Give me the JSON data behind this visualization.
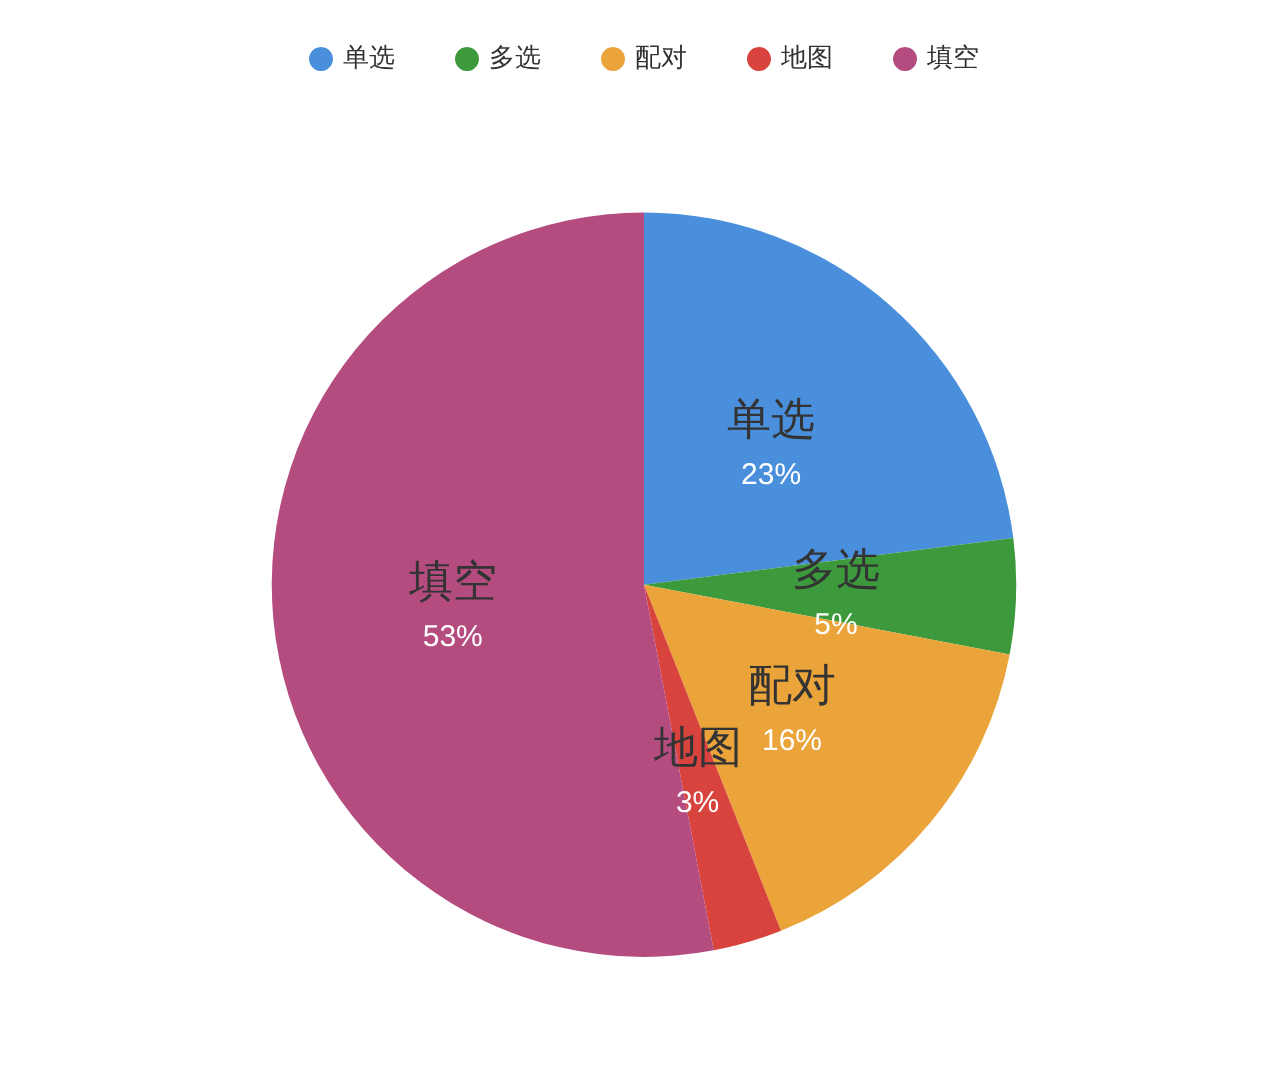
{
  "chart_data": {
    "type": "pie",
    "categories": [
      "单选",
      "多选",
      "配对",
      "地图",
      "填空"
    ],
    "values": [
      23,
      5,
      16,
      3,
      53
    ],
    "value_labels": [
      "23%",
      "5%",
      "16%",
      "3%",
      "53%"
    ],
    "colors": [
      "#4a8fdc",
      "#3c9a3c",
      "#eba43a",
      "#d8433e",
      "#b44c80"
    ],
    "legend": "top"
  }
}
